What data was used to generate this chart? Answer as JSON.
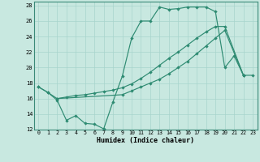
{
  "xlabel": "Humidex (Indice chaleur)",
  "bg_color": "#c8e8e0",
  "line_color": "#2e8b72",
  "grid_color": "#a8d4cc",
  "xlim": [
    -0.5,
    23.5
  ],
  "ylim": [
    12,
    28.5
  ],
  "xticks": [
    0,
    1,
    2,
    3,
    4,
    5,
    6,
    7,
    8,
    9,
    10,
    11,
    12,
    13,
    14,
    15,
    16,
    17,
    18,
    19,
    20,
    21,
    22,
    23
  ],
  "yticks": [
    12,
    14,
    16,
    18,
    20,
    22,
    24,
    26,
    28
  ],
  "line1_x": [
    0,
    1,
    2,
    3,
    4,
    5,
    6,
    7,
    8,
    9,
    10,
    11,
    12,
    13,
    14,
    15,
    16,
    17,
    18,
    19,
    20,
    21,
    22
  ],
  "line1_y": [
    17.5,
    16.8,
    15.8,
    13.2,
    13.8,
    12.8,
    12.7,
    12.1,
    15.6,
    18.9,
    23.8,
    26.0,
    26.0,
    27.8,
    27.5,
    27.6,
    27.8,
    27.8,
    27.8,
    27.2,
    20.0,
    21.5,
    19.0
  ],
  "line2_x": [
    0,
    1,
    2,
    3,
    4,
    5,
    6,
    7,
    8,
    9,
    10,
    11,
    12,
    13,
    14,
    15,
    16,
    17,
    18,
    19,
    20,
    22
  ],
  "line2_y": [
    17.5,
    16.8,
    16.0,
    16.2,
    16.4,
    16.5,
    16.7,
    16.9,
    17.1,
    17.4,
    17.9,
    18.6,
    19.4,
    20.3,
    21.2,
    22.0,
    22.9,
    23.8,
    24.6,
    25.3,
    25.3,
    19.0
  ],
  "line3_x": [
    2,
    9,
    10,
    11,
    12,
    13,
    14,
    15,
    16,
    17,
    18,
    19,
    20,
    22,
    23
  ],
  "line3_y": [
    16.0,
    16.5,
    17.0,
    17.5,
    18.0,
    18.5,
    19.2,
    20.0,
    20.8,
    21.8,
    22.8,
    23.8,
    24.8,
    19.0,
    19.0
  ]
}
